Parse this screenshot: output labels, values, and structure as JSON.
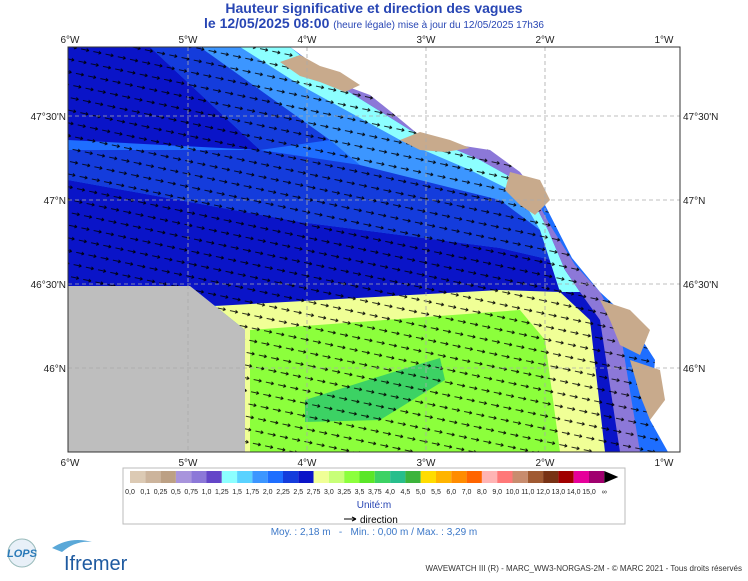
{
  "header": {
    "title": "Hauteur significative et direction des vagues",
    "date": "le 12/05/2025 08:00",
    "subtitle": "(heure légale) mise à jour du 12/05/2025 17h36"
  },
  "axes": {
    "lon": [
      "6°W",
      "5°W",
      "4°W",
      "3°W",
      "2°W",
      "1°W"
    ],
    "lat": [
      "47°30'N",
      "47°N",
      "46°30'N",
      "46°N"
    ]
  },
  "legend": {
    "colors": [
      "#dccab4",
      "#ccb49c",
      "#bca084",
      "#a894dc",
      "#8c78d8",
      "#6446c8",
      "#8cffff",
      "#5ad2ff",
      "#3c96ff",
      "#1e6eff",
      "#143cdc",
      "#0a14c8",
      "#f0ff96",
      "#c8ff78",
      "#8cff3c",
      "#5ae628",
      "#3cd264",
      "#28be8c",
      "#3cb43c",
      "#ffdc00",
      "#ffb400",
      "#ff8c00",
      "#ff6400",
      "#ffb4b4",
      "#ff7878",
      "#c88c6e",
      "#a05a32",
      "#783214",
      "#a00000",
      "#e6009a",
      "#a0006e"
    ],
    "labels": [
      "0,0",
      "0,1",
      "0,25",
      "0,5",
      "0,75",
      "1,0",
      "1,25",
      "1,5",
      "1,75",
      "2,0",
      "2,25",
      "2,5",
      "2,75",
      "3,0",
      "3,25",
      "3,5",
      "3,75",
      "4,0",
      "4,5",
      "5,0",
      "5,5",
      "6,0",
      "7,0",
      "8,0",
      "9,0",
      "10,0",
      "11,0",
      "12,0",
      "13,0",
      "14,0",
      "15,0",
      "∞"
    ],
    "unit": "Unité:m",
    "direction": "direction"
  },
  "stats": "Moy. : 2,18 m   -   Min. : 0,00 m / Max. : 3,29 m",
  "footer": "WAVEWATCH III (R) - MARC_WW3-NORGAS-2M - © MARC 2021 - Tous droits réservés",
  "logos": {
    "lops": "LOPS",
    "ifremer": "Ifremer"
  }
}
